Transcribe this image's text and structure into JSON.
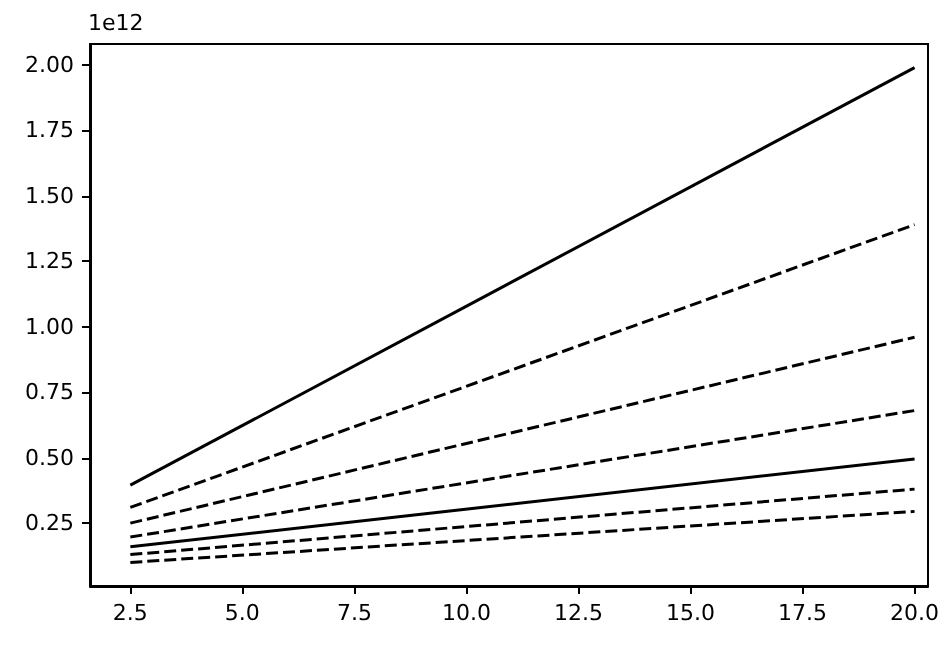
{
  "chart_data": {
    "type": "line",
    "annotations": [
      "1e12"
    ],
    "x": [
      2.5,
      20
    ],
    "xlim": [
      1.6,
      20.3
    ],
    "xticks": [
      {
        "value": 2.5,
        "label": "2.5"
      },
      {
        "value": 5,
        "label": "5.0"
      },
      {
        "value": 7.5,
        "label": "7.5"
      },
      {
        "value": 10,
        "label": "10.0"
      },
      {
        "value": 12.5,
        "label": "12.5"
      },
      {
        "value": 15,
        "label": "15.0"
      },
      {
        "value": 17.5,
        "label": "17.5"
      },
      {
        "value": 20,
        "label": "20.0"
      }
    ],
    "ylim": [
      0.01,
      2.08
    ],
    "yticks": [
      {
        "value": 0.25,
        "label": "0.25"
      },
      {
        "value": 0.5,
        "label": "0.50"
      },
      {
        "value": 0.75,
        "label": "0.75"
      },
      {
        "value": 1,
        "label": "1.00"
      },
      {
        "value": 1.25,
        "label": "1.25"
      },
      {
        "value": 1.5,
        "label": "1.50"
      },
      {
        "value": 1.75,
        "label": "1.75"
      },
      {
        "value": 2,
        "label": "2.00"
      }
    ],
    "grid": false,
    "marker": "none",
    "series": [
      {
        "color": "#000000",
        "line_style": "solid",
        "values": [
          0.395,
          1.99
        ]
      },
      {
        "color": "#000000",
        "line_style": "dashed",
        "values": [
          0.31,
          1.39
        ]
      },
      {
        "color": "#000000",
        "line_style": "dashed",
        "values": [
          0.25,
          0.96
        ]
      },
      {
        "color": "#000000",
        "line_style": "dashed",
        "values": [
          0.197,
          0.68
        ]
      },
      {
        "color": "#000000",
        "line_style": "solid",
        "values": [
          0.16,
          0.495
        ]
      },
      {
        "color": "#000000",
        "line_style": "dashed",
        "values": [
          0.13,
          0.38
        ]
      },
      {
        "color": "#000000",
        "line_style": "dashed",
        "values": [
          0.1,
          0.295
        ]
      }
    ]
  }
}
